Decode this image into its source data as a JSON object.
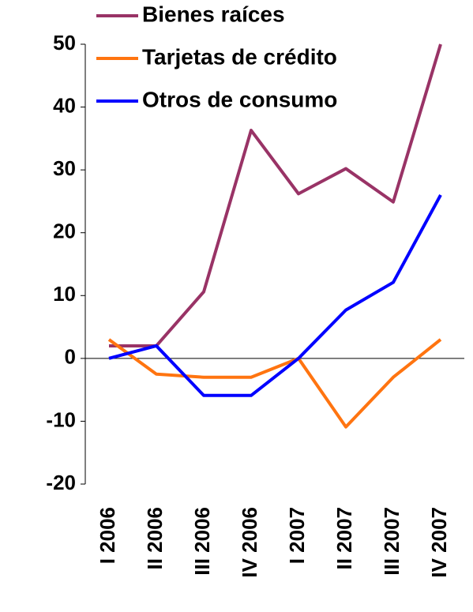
{
  "chart_data": {
    "type": "line",
    "categories": [
      "I 2006",
      "II 2006",
      "III 2006",
      "IV 2006",
      "I 2007",
      "II 2007",
      "III 2007",
      "IV 2007"
    ],
    "series": [
      {
        "name": "Bienes raíces",
        "color": "#993366",
        "values": [
          2,
          2,
          10.6,
          36.3,
          26.2,
          30.2,
          24.9,
          50
        ]
      },
      {
        "name": "Tarjetas de crédito",
        "color": "#FF7410",
        "values": [
          3,
          -2.5,
          -3,
          -3,
          0,
          -10.9,
          -3,
          3
        ]
      },
      {
        "name": "Otros de consumo",
        "color": "#0000FF",
        "values": [
          0,
          2,
          -5.9,
          -5.9,
          0,
          7.7,
          12.1,
          26
        ]
      }
    ],
    "ylim": [
      -20,
      50
    ],
    "yticks": [
      -20,
      -10,
      0,
      10,
      20,
      30,
      40,
      50
    ],
    "grid": false,
    "legend": "top"
  }
}
